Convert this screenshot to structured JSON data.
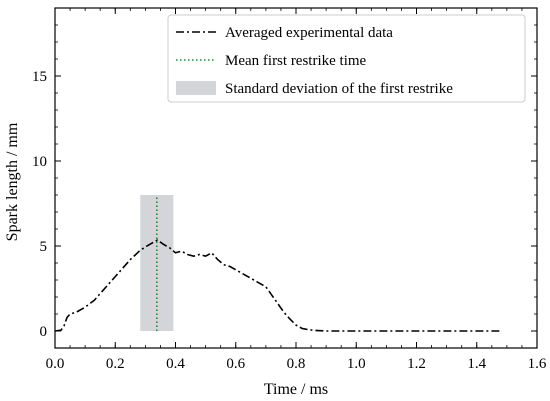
{
  "chart_data": {
    "type": "line",
    "title": "",
    "xlabel": "Time / ms",
    "ylabel": "Spark length / mm",
    "xlim": [
      0.0,
      1.6
    ],
    "ylim": [
      -1.0,
      19.0
    ],
    "xticks": [
      0.0,
      0.2,
      0.4,
      0.6,
      0.8,
      1.0,
      1.2,
      1.4,
      1.6
    ],
    "xtick_labels": [
      "0.0",
      "0.2",
      "0.4",
      "0.6",
      "0.8",
      "1.0",
      "1.2",
      "1.4",
      "1.6"
    ],
    "yticks": [
      0,
      5,
      10,
      15
    ],
    "ytick_labels": [
      "0",
      "5",
      "10",
      "15"
    ],
    "grid": false,
    "legend_position": "top-right",
    "series": [
      {
        "name": "Averaged experimental data",
        "style": "dashdot",
        "color": "#000000",
        "x": [
          0.0,
          0.02,
          0.03,
          0.04,
          0.05,
          0.07,
          0.1,
          0.13,
          0.16,
          0.19,
          0.22,
          0.25,
          0.28,
          0.3,
          0.32,
          0.34,
          0.36,
          0.38,
          0.4,
          0.42,
          0.44,
          0.46,
          0.48,
          0.5,
          0.52,
          0.54,
          0.56,
          0.58,
          0.6,
          0.62,
          0.64,
          0.66,
          0.68,
          0.7,
          0.72,
          0.74,
          0.76,
          0.78,
          0.8,
          0.82,
          0.84,
          0.86,
          0.88,
          0.9,
          1.0,
          1.1,
          1.2,
          1.3,
          1.4,
          1.48
        ],
        "y": [
          0.0,
          0.05,
          0.3,
          0.8,
          1.0,
          1.1,
          1.4,
          1.8,
          2.4,
          3.0,
          3.6,
          4.2,
          4.7,
          4.95,
          5.15,
          5.35,
          5.1,
          4.9,
          4.6,
          4.7,
          4.5,
          4.4,
          4.5,
          4.4,
          4.6,
          4.2,
          3.9,
          3.8,
          3.6,
          3.4,
          3.2,
          3.0,
          2.8,
          2.6,
          2.1,
          1.6,
          1.1,
          0.7,
          0.35,
          0.15,
          0.08,
          0.04,
          0.02,
          0.0,
          0.0,
          0.0,
          0.0,
          0.0,
          0.0,
          0.0
        ]
      },
      {
        "name": "Mean first restrike time",
        "style": "dotted",
        "color": "#1a8a3a",
        "x": [
          0.338,
          0.338
        ],
        "y": [
          0.0,
          8.0
        ]
      }
    ],
    "bands": [
      {
        "name": "Standard deviation of the first restrike",
        "color": "#d3d5d8",
        "x_range": [
          0.283,
          0.393
        ],
        "y_range": [
          0.0,
          8.0
        ]
      }
    ]
  }
}
